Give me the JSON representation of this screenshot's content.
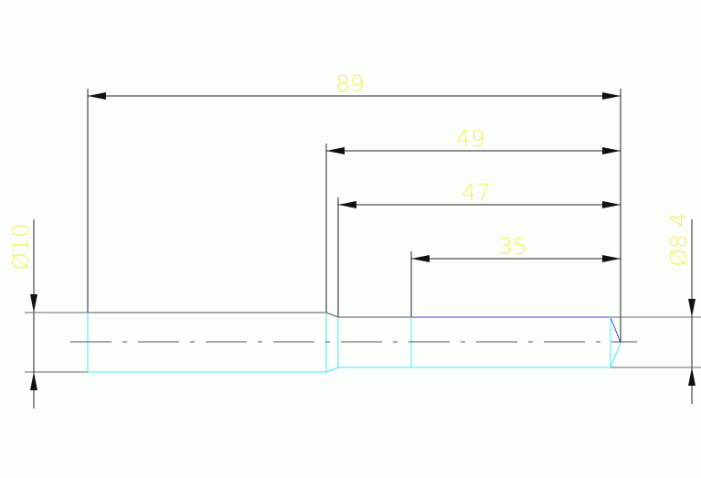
{
  "drawing": {
    "dimensions": {
      "overall": "89",
      "step_49": "49",
      "step_47": "47",
      "thread_35": "35",
      "diameter_left": "Ø10",
      "diameter_right": "Ø8.4"
    },
    "colors": {
      "background": "#fcfefc",
      "dimension_text": "#f2f25a",
      "outline": "#555555",
      "hidden_edge": "#40f0f0",
      "thread_edge": "#5040d0"
    }
  }
}
